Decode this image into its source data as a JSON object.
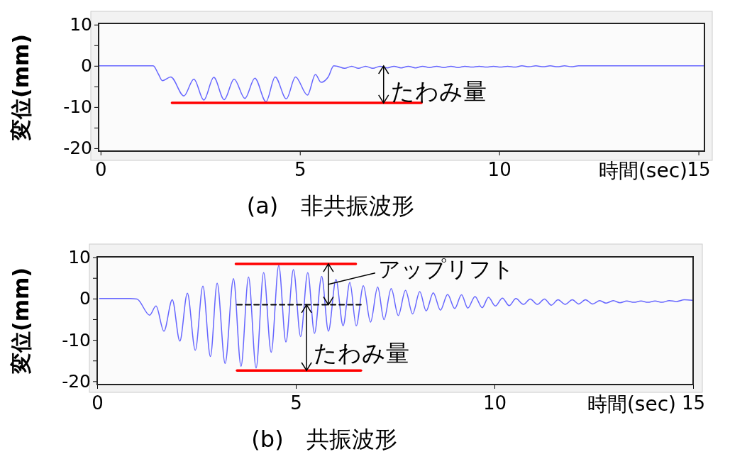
{
  "chart_data": [
    {
      "type": "line",
      "title": "(a)　非共振波形",
      "xlabel": "時間(sec)",
      "ylabel": "変位(mm)",
      "xlim": [
        -0.05,
        15.15
      ],
      "ylim": [
        -20.7,
        10.3
      ],
      "xticks": [
        0,
        5,
        10,
        15
      ],
      "yticks": [
        10,
        {
          "value": 5,
          "label": null
        },
        0,
        {
          "value": -5,
          "label": null
        },
        -10,
        {
          "value": -15,
          "label": null
        },
        -20
      ],
      "grid": false,
      "line_style": "solid",
      "series": [
        {
          "color": "#6666ff",
          "x": [
            -0.05,
            1.32,
            1.45,
            1.55,
            1.76,
            2.09,
            2.34,
            2.59,
            2.84,
            3.1,
            3.35,
            3.62,
            3.87,
            4.15,
            4.38,
            4.66,
            4.89,
            5.19,
            5.39,
            5.53,
            5.71,
            5.85,
            5.94,
            6.12,
            6.3,
            6.47,
            6.65,
            6.83,
            7.01,
            7.19,
            7.36,
            7.54,
            7.72,
            7.9,
            8.08,
            8.25,
            8.43,
            8.61,
            8.79,
            8.97,
            9.14,
            9.32,
            9.5,
            9.68,
            9.86,
            10.03,
            10.21,
            10.39,
            10.57,
            10.75,
            10.92,
            11.1,
            11.28,
            11.46,
            11.64,
            11.81,
            11.99,
            15.15
          ],
          "values": [
            0,
            0,
            -2.0,
            -3.6,
            -2.7,
            -7.3,
            -3.2,
            -8.3,
            -2.8,
            -8.2,
            -3.2,
            -7.9,
            -3.0,
            -8.7,
            -2.7,
            -8.0,
            -2.7,
            -7.1,
            -2.1,
            -4.0,
            -2.7,
            0,
            -0.1,
            -0.6,
            -0.1,
            -0.6,
            -0.1,
            -0.6,
            -0.1,
            -0.5,
            -0.1,
            -0.5,
            -0.1,
            -0.5,
            -0.1,
            -0.4,
            -0.1,
            -0.4,
            -0.1,
            -0.4,
            -0.1,
            -0.3,
            -0.1,
            -0.3,
            -0.1,
            -0.3,
            -0.1,
            -0.3,
            0,
            -0.2,
            0,
            -0.2,
            0,
            -0.2,
            0,
            -0.2,
            0,
            0
          ]
        },
        {
          "color": "#ff0000",
          "x": [
            1.79,
            8.05
          ],
          "values": [
            -9.0,
            -9.0
          ]
        }
      ],
      "annotations": [
        {
          "text": "たわみ量",
          "x": 7.1,
          "y": -9.0
        }
      ]
    },
    {
      "type": "line",
      "title": "(b)　共振波形",
      "xlabel": "時間(sec)",
      "ylabel": "変位(mm)",
      "xlim": [
        0,
        15.0
      ],
      "ylim": [
        -20.8,
        10.1
      ],
      "xticks": [
        0,
        5,
        10,
        15
      ],
      "yticks": [
        10,
        {
          "value": 5,
          "label": null
        },
        0,
        {
          "value": -5,
          "label": null
        },
        -10,
        {
          "value": -15,
          "label": null
        },
        -20
      ],
      "grid": false,
      "line_style": "solid",
      "series": [
        {
          "color": "#6666ff",
          "x": [
            0.06,
            0.82,
            1.0,
            1.32,
            1.48,
            1.68,
            1.89,
            2.08,
            2.27,
            2.47,
            2.66,
            2.85,
            3.02,
            3.22,
            3.43,
            3.62,
            3.81,
            4.0,
            4.19,
            4.38,
            4.57,
            4.75,
            4.94,
            5.12,
            5.3,
            5.47,
            5.65,
            5.82,
            6.01,
            6.19,
            6.36,
            6.52,
            6.7,
            6.88,
            7.06,
            7.22,
            7.4,
            7.58,
            7.76,
            7.94,
            8.12,
            8.28,
            8.46,
            8.64,
            8.82,
            9.0,
            9.17,
            9.33,
            9.51,
            9.69,
            9.85,
            10.02,
            10.2,
            10.37,
            10.54,
            10.73,
            10.9,
            11.08,
            11.26,
            11.43,
            11.6,
            11.78,
            11.96,
            12.12,
            12.29,
            12.47,
            12.65,
            12.81,
            12.99,
            13.16,
            13.33,
            13.51,
            13.69,
            13.86,
            14.04,
            14.22,
            14.4,
            14.58,
            14.78,
            14.98
          ],
          "values": [
            0,
            0,
            -0.1,
            -4.0,
            -1.8,
            -7.9,
            -0.3,
            -10.3,
            1.3,
            -12.5,
            3.0,
            -14.0,
            3.7,
            -15.7,
            4.8,
            -16.4,
            5.2,
            -16.8,
            6.3,
            -13.0,
            8.0,
            -10.5,
            7.0,
            -9.2,
            6.3,
            -8.4,
            5.4,
            -7.9,
            4.6,
            -6.6,
            3.9,
            -6.6,
            3.1,
            -5.7,
            2.8,
            -5.1,
            2.4,
            -4.1,
            2.0,
            -3.7,
            1.7,
            -3.0,
            1.4,
            -2.8,
            1.0,
            -2.4,
            0.9,
            -2.3,
            0.5,
            -2.2,
            0.3,
            -1.8,
            0.1,
            -1.7,
            0,
            -1.4,
            -0.1,
            -1.4,
            -0.1,
            -1.6,
            -0.3,
            -1.4,
            -0.3,
            -1.3,
            -0.3,
            -1.3,
            -0.5,
            -1.1,
            -0.5,
            -1.0,
            -0.6,
            -0.9,
            -0.6,
            -0.9,
            -0.6,
            -0.9,
            -0.5,
            -0.7,
            -0.3,
            -0.4
          ]
        },
        {
          "color": "#ff0000",
          "x": [
            3.49,
            6.51
          ],
          "values": [
            8.4,
            8.4
          ]
        },
        {
          "color": "#ff0000",
          "x": [
            3.52,
            6.64
          ],
          "values": [
            -17.4,
            -17.4
          ]
        },
        {
          "color": "#000000",
          "x": [
            3.52,
            6.64
          ],
          "values": [
            -1.5,
            -1.5
          ],
          "line_style": "dashed"
        }
      ],
      "annotations": [
        {
          "text": "アップリフト",
          "x": 5.82,
          "y": 8.4
        },
        {
          "text": "たわみ量",
          "x": 5.27,
          "y": -17.4
        }
      ]
    }
  ]
}
